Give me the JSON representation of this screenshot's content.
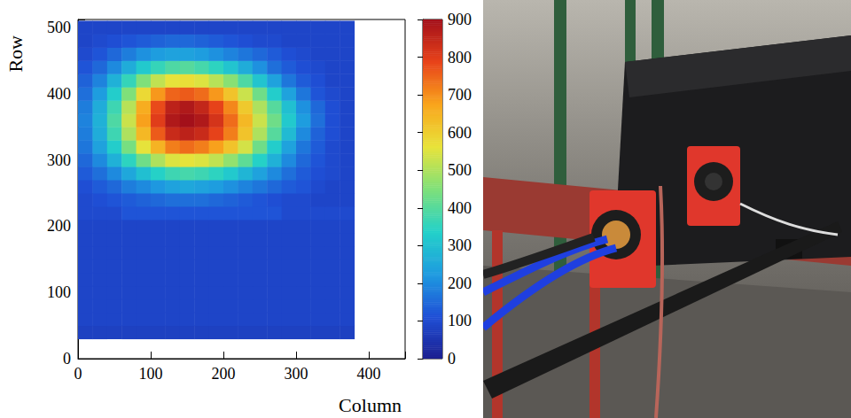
{
  "chart_data": {
    "type": "heatmap",
    "x_label": "Column",
    "y_label": "Row",
    "xlim": [
      0,
      450
    ],
    "ylim": [
      0,
      512
    ],
    "xticks": [
      0,
      100,
      200,
      300,
      400
    ],
    "yticks": [
      0,
      100,
      200,
      300,
      400,
      500
    ],
    "x_bins": [
      0,
      20,
      40,
      60,
      80,
      100,
      120,
      140,
      160,
      180,
      200,
      220,
      240,
      260,
      280,
      300,
      320,
      340,
      360,
      380
    ],
    "y_bins": [
      30,
      50,
      70,
      90,
      110,
      130,
      150,
      170,
      190,
      210,
      230,
      250,
      270,
      290,
      310,
      330,
      350,
      370,
      390,
      410,
      430,
      450,
      470,
      490,
      510
    ],
    "cells": [
      [
        80,
        80,
        80,
        80,
        80,
        80,
        80,
        80,
        80,
        80,
        80,
        80,
        80,
        80,
        80,
        80,
        80,
        80,
        80
      ],
      [
        90,
        90,
        90,
        90,
        90,
        90,
        90,
        90,
        90,
        90,
        90,
        90,
        90,
        90,
        90,
        90,
        90,
        90,
        90
      ],
      [
        90,
        90,
        90,
        90,
        90,
        90,
        90,
        90,
        90,
        90,
        90,
        90,
        90,
        90,
        90,
        90,
        90,
        90,
        90
      ],
      [
        90,
        90,
        90,
        90,
        90,
        90,
        90,
        90,
        90,
        90,
        90,
        90,
        90,
        90,
        90,
        90,
        90,
        90,
        90
      ],
      [
        90,
        90,
        90,
        90,
        90,
        90,
        90,
        90,
        90,
        90,
        90,
        90,
        90,
        90,
        90,
        90,
        90,
        90,
        90
      ],
      [
        90,
        90,
        90,
        90,
        90,
        90,
        90,
        90,
        90,
        90,
        90,
        90,
        90,
        90,
        90,
        90,
        90,
        90,
        90
      ],
      [
        90,
        90,
        90,
        90,
        90,
        90,
        90,
        90,
        90,
        90,
        90,
        90,
        90,
        90,
        90,
        90,
        90,
        90,
        90
      ],
      [
        90,
        90,
        90,
        90,
        90,
        90,
        90,
        90,
        90,
        90,
        90,
        90,
        90,
        90,
        90,
        90,
        90,
        90,
        90
      ],
      [
        90,
        90,
        90,
        90,
        90,
        90,
        90,
        90,
        90,
        90,
        90,
        90,
        90,
        90,
        90,
        90,
        90,
        90,
        90
      ],
      [
        100,
        100,
        100,
        120,
        120,
        120,
        120,
        120,
        120,
        120,
        120,
        120,
        120,
        120,
        100,
        100,
        100,
        100,
        100
      ],
      [
        100,
        110,
        120,
        130,
        140,
        150,
        160,
        160,
        160,
        150,
        140,
        130,
        120,
        110,
        100,
        100,
        90,
        90,
        90
      ],
      [
        110,
        130,
        150,
        180,
        200,
        220,
        240,
        250,
        240,
        230,
        210,
        190,
        170,
        150,
        130,
        120,
        100,
        90,
        90
      ],
      [
        130,
        160,
        200,
        250,
        300,
        340,
        370,
        380,
        370,
        350,
        320,
        280,
        240,
        200,
        160,
        130,
        110,
        100,
        90
      ],
      [
        150,
        200,
        270,
        350,
        430,
        500,
        550,
        560,
        550,
        520,
        470,
        410,
        340,
        270,
        200,
        150,
        120,
        100,
        90
      ],
      [
        170,
        240,
        330,
        440,
        560,
        650,
        720,
        740,
        720,
        680,
        620,
        540,
        430,
        330,
        240,
        170,
        130,
        100,
        90
      ],
      [
        180,
        260,
        370,
        500,
        640,
        760,
        840,
        860,
        840,
        790,
        720,
        620,
        500,
        400,
        290,
        200,
        140,
        110,
        90
      ],
      [
        190,
        270,
        390,
        530,
        680,
        800,
        880,
        900,
        880,
        820,
        740,
        640,
        530,
        430,
        320,
        230,
        160,
        110,
        90
      ],
      [
        180,
        260,
        370,
        510,
        660,
        780,
        860,
        880,
        850,
        790,
        710,
        610,
        500,
        400,
        300,
        210,
        150,
        110,
        90
      ],
      [
        160,
        230,
        330,
        450,
        580,
        690,
        750,
        760,
        740,
        690,
        620,
        530,
        430,
        330,
        240,
        170,
        120,
        100,
        90
      ],
      [
        140,
        190,
        270,
        360,
        450,
        520,
        560,
        570,
        550,
        510,
        460,
        390,
        310,
        240,
        170,
        130,
        110,
        90,
        90
      ],
      [
        120,
        150,
        200,
        260,
        320,
        360,
        390,
        400,
        380,
        350,
        310,
        260,
        210,
        160,
        130,
        110,
        100,
        90,
        90
      ],
      [
        100,
        120,
        150,
        180,
        210,
        230,
        240,
        240,
        230,
        210,
        190,
        170,
        150,
        130,
        110,
        100,
        90,
        90,
        90
      ],
      [
        90,
        100,
        110,
        120,
        130,
        140,
        150,
        150,
        140,
        130,
        120,
        110,
        100,
        100,
        90,
        90,
        90,
        90,
        90
      ],
      [
        90,
        90,
        90,
        90,
        90,
        90,
        90,
        90,
        90,
        90,
        90,
        90,
        90,
        90,
        90,
        90,
        90,
        90,
        90
      ]
    ],
    "colorbar": {
      "range": [
        0,
        900
      ],
      "ticks": [
        0,
        100,
        200,
        300,
        400,
        500,
        600,
        700,
        800,
        900
      ]
    }
  }
}
